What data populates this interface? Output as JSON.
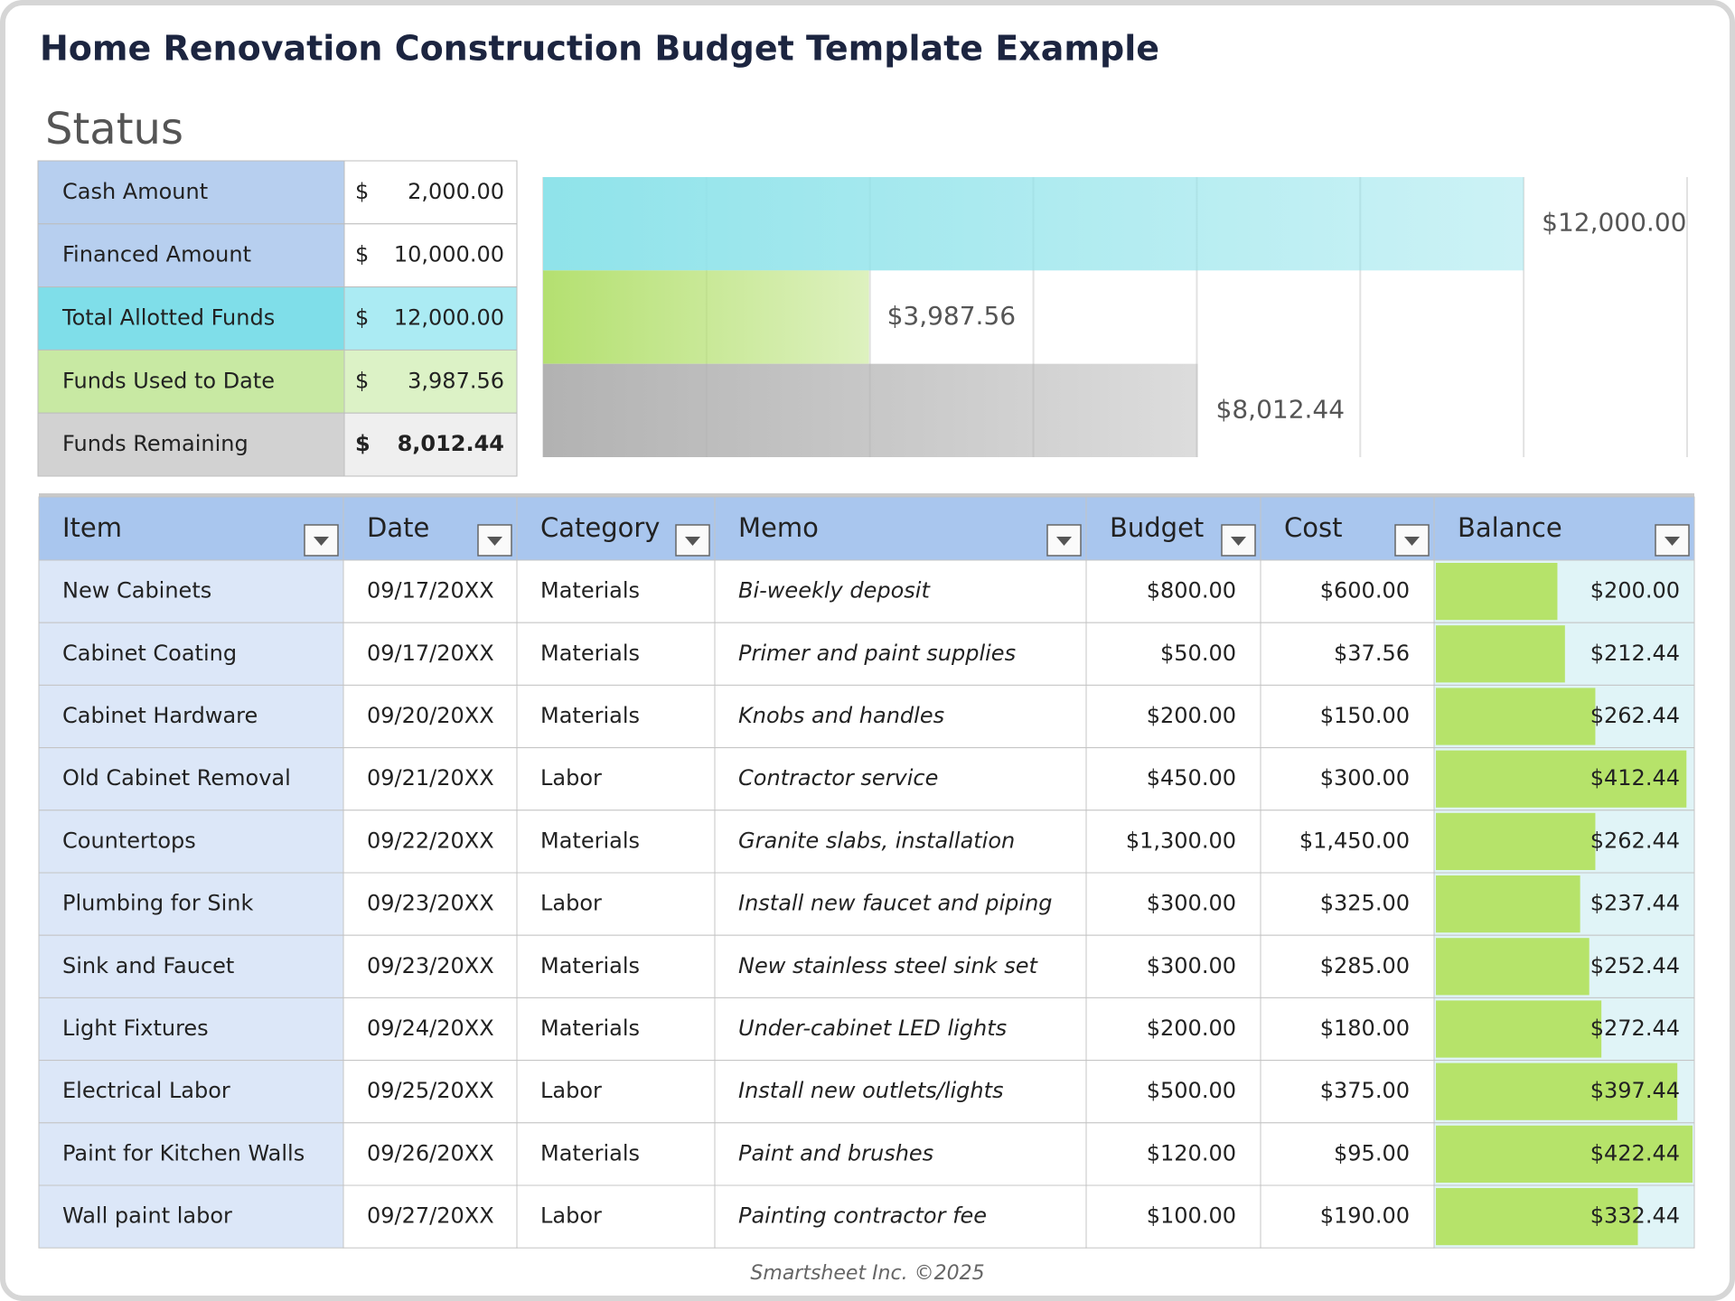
{
  "header": {
    "title": "Home Renovation Construction Budget Template Example"
  },
  "status": {
    "heading": "Status",
    "rows": [
      {
        "label": "Cash Amount",
        "currency": "$",
        "amount": "2,000.00",
        "color": "#b7cfef",
        "value_color": "#ffffff"
      },
      {
        "label": "Financed Amount",
        "currency": "$",
        "amount": "10,000.00",
        "color": "#b7cfef",
        "value_color": "#ffffff"
      },
      {
        "label": "Total Allotted Funds",
        "currency": "$",
        "amount": "12,000.00",
        "color": "#7fdee9",
        "value_color": "#abebf3"
      },
      {
        "label": "Funds Used to Date",
        "currency": "$",
        "amount": "3,987.56",
        "color": "#c8e9a3",
        "value_color": "#dcf2c6"
      },
      {
        "label": "Funds Remaining",
        "currency": "$",
        "amount": "8,012.44",
        "color": "#d2d2d2",
        "value_color": "#efefef",
        "bold": true
      }
    ]
  },
  "chart_data": {
    "type": "bar",
    "orientation": "horizontal",
    "values": [
      12000,
      3987.56,
      8012.44
    ],
    "value_labels": [
      "$12,000.00",
      "$3,987.56",
      "$8,012.44"
    ],
    "colors": [
      "#8fe3ea",
      "#b4e070",
      "#b2b2b2"
    ],
    "xlim": [
      0,
      14000
    ],
    "xticks": [
      0,
      2000,
      4000,
      6000,
      8000,
      10000,
      12000,
      14000
    ],
    "grid": true
  },
  "table": {
    "columns": [
      "Item",
      "Date",
      "Category",
      "Memo",
      "Budget",
      "Cost",
      "Balance"
    ],
    "rows": [
      {
        "item": "New Cabinets",
        "date": "09/17/20XX",
        "category": "Materials",
        "memo": "Bi-weekly deposit",
        "budget": "$800.00",
        "cost": "$600.00",
        "balance": {
          "value": 200,
          "label": "$200.00"
        }
      },
      {
        "item": "Cabinet Coating",
        "date": "09/17/20XX",
        "category": "Materials",
        "memo": "Primer and paint supplies",
        "budget": "$50.00",
        "cost": "$37.56",
        "balance": {
          "value": 212.44,
          "label": "$212.44"
        }
      },
      {
        "item": "Cabinet Hardware",
        "date": "09/20/20XX",
        "category": "Materials",
        "memo": "Knobs and handles",
        "budget": "$200.00",
        "cost": "$150.00",
        "balance": {
          "value": 262.44,
          "label": "$262.44"
        }
      },
      {
        "item": "Old Cabinet Removal",
        "date": "09/21/20XX",
        "category": "Labor",
        "memo": "Contractor service",
        "budget": "$450.00",
        "cost": "$300.00",
        "balance": {
          "value": 412.44,
          "label": "$412.44"
        }
      },
      {
        "item": "Countertops",
        "date": "09/22/20XX",
        "category": "Materials",
        "memo": "Granite slabs, installation",
        "budget": "$1,300.00",
        "cost": "$1,450.00",
        "balance": {
          "value": 262.44,
          "label": "$262.44"
        }
      },
      {
        "item": "Plumbing for Sink",
        "date": "09/23/20XX",
        "category": "Labor",
        "memo": "Install new faucet and piping",
        "budget": "$300.00",
        "cost": "$325.00",
        "balance": {
          "value": 237.44,
          "label": "$237.44"
        }
      },
      {
        "item": "Sink and Faucet",
        "date": "09/23/20XX",
        "category": "Materials",
        "memo": "New stainless steel sink set",
        "budget": "$300.00",
        "cost": "$285.00",
        "balance": {
          "value": 252.44,
          "label": "$252.44"
        }
      },
      {
        "item": "Light Fixtures",
        "date": "09/24/20XX",
        "category": "Materials",
        "memo": "Under-cabinet LED lights",
        "budget": "$200.00",
        "cost": "$180.00",
        "balance": {
          "value": 272.44,
          "label": "$272.44"
        }
      },
      {
        "item": "Electrical Labor",
        "date": "09/25/20XX",
        "category": "Labor",
        "memo": "Install new outlets/lights",
        "budget": "$500.00",
        "cost": "$375.00",
        "balance": {
          "value": 397.44,
          "label": "$397.44"
        }
      },
      {
        "item": "Paint for Kitchen Walls",
        "date": "09/26/20XX",
        "category": "Materials",
        "memo": "Paint and brushes",
        "budget": "$120.00",
        "cost": "$95.00",
        "balance": {
          "value": 422.44,
          "label": "$422.44"
        }
      },
      {
        "item": "Wall paint labor",
        "date": "09/27/20XX",
        "category": "Labor",
        "memo": "Painting contractor fee",
        "budget": "$100.00",
        "cost": "$190.00",
        "balance": {
          "value": 332.44,
          "label": "$332.44"
        }
      }
    ]
  },
  "footer": {
    "text": "Smartsheet Inc. ©2025"
  }
}
